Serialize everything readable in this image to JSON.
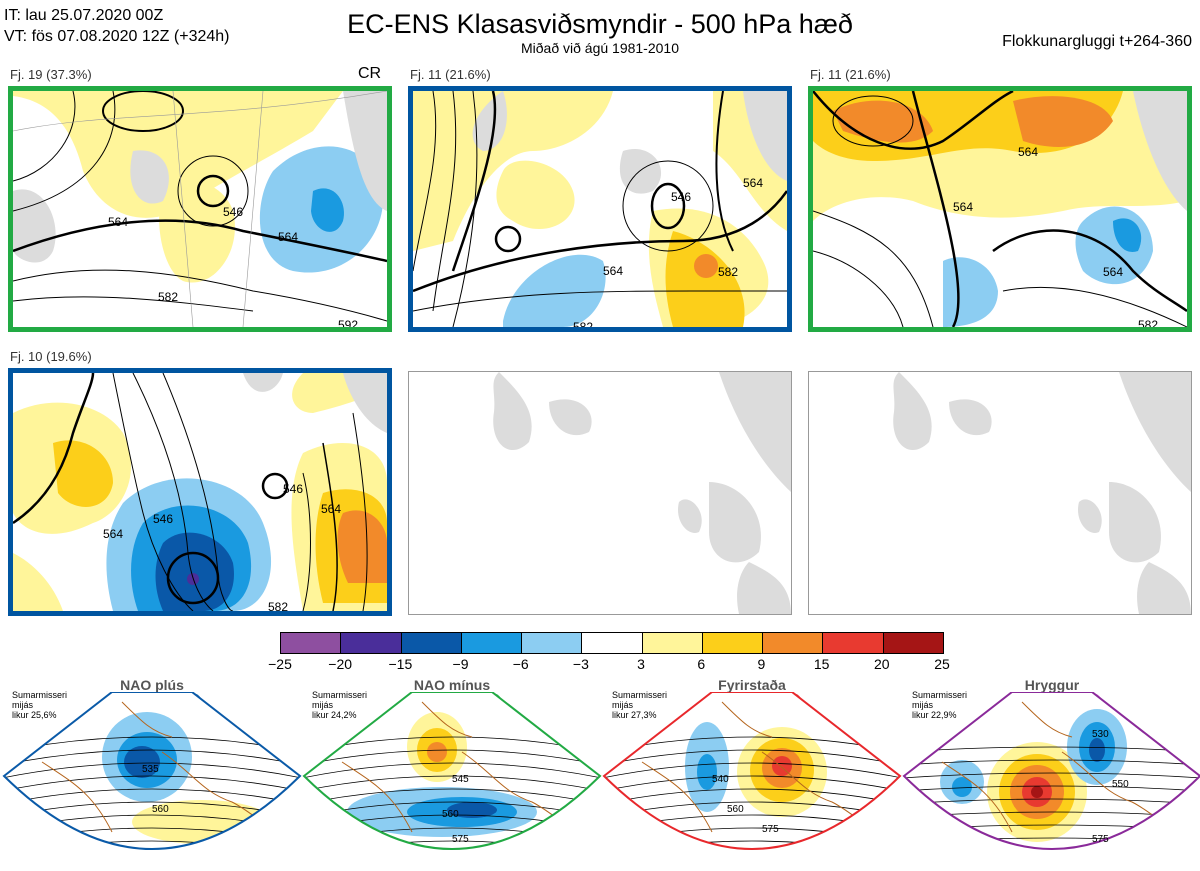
{
  "header": {
    "it_line": "IT: lau 25.07.2020 00Z",
    "vt_line": "VT: fös 07.08.2020 12Z  (+324h)",
    "title": "EC-ENS Klasasviðsmyndir - 500 hPa hæð",
    "subtitle": "Miðað við ágú 1981-2010",
    "window": "Flokkunargluggi t+264-360"
  },
  "colors": {
    "green": "#22aa44",
    "blue": "#0055a0",
    "land": "#dcdcdc",
    "coast": "#8a7a6a",
    "regime_nao_plus": "#0a5aa8",
    "regime_nao_minus": "#22aa44",
    "regime_block": "#e8282c",
    "regime_ridge": "#ee66ee"
  },
  "panels": [
    {
      "label": "Fj. 19 (37.3%)",
      "badge": "CR",
      "border": "green",
      "contour_labels": [
        "564",
        "546",
        "564",
        "582",
        "592"
      ]
    },
    {
      "label": "Fj. 11 (21.6%)",
      "badge": "",
      "border": "blue",
      "contour_labels": [
        "564",
        "546",
        "564",
        "582",
        "582"
      ]
    },
    {
      "label": "Fj. 11 (21.6%)",
      "badge": "",
      "border": "green",
      "contour_labels": [
        "564",
        "564",
        "564",
        "582"
      ]
    },
    {
      "label": "Fj. 10 (19.6%)",
      "badge": "",
      "border": "blue",
      "contour_labels": [
        "546",
        "564",
        "546",
        "564",
        "582"
      ]
    }
  ],
  "colorbar": {
    "ticks": [
      "−25",
      "−20",
      "−15",
      "−9",
      "−6",
      "−3",
      "3",
      "6",
      "9",
      "15",
      "20",
      "25"
    ],
    "colors": [
      "#8e4fa0",
      "#4a2e9a",
      "#0a58a8",
      "#1a9ae0",
      "#8ccdf2",
      "#ffffff",
      "#fff59a",
      "#fccf1a",
      "#f28a2a",
      "#e83a30",
      "#a51515"
    ]
  },
  "regimes": [
    {
      "title": "NAO plús",
      "note": [
        "Sumarmisseri",
        "mijás",
        "likur 25,6%"
      ],
      "color_key": "regime_nao_plus",
      "border": "#0a5aa8",
      "labels": [
        "535",
        "560"
      ]
    },
    {
      "title": "NAO mínus",
      "note": [
        "Sumarmisseri",
        "mijás",
        "likur 24,2%"
      ],
      "color_key": "regime_nao_minus",
      "border": "#22aa44",
      "labels": [
        "545",
        "560",
        "575"
      ]
    },
    {
      "title": "Fyrirstaða",
      "note": [
        "Sumarmisseri",
        "mijás",
        "likur 27,3%"
      ],
      "color_key": "regime_block",
      "border": "#e8282c",
      "labels": [
        "540",
        "560",
        "575"
      ]
    },
    {
      "title": "Hryggur",
      "note": [
        "Sumarmisseri",
        "mijás",
        "likur 22,9%"
      ],
      "color_key": "regime_ridge",
      "border": "#8a2a9a",
      "labels": [
        "530",
        "550",
        "575"
      ]
    }
  ]
}
